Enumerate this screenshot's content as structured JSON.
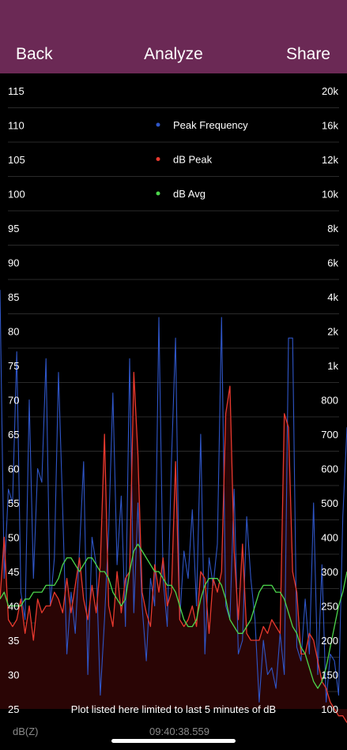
{
  "navbar": {
    "back_label": "Back",
    "title": "Analyze",
    "share_label": "Share"
  },
  "footer": {
    "notice": "Plot listed here limited to last 5 minutes of dB",
    "weighting": "dB(Z)",
    "timestamp": "09:40:38.559"
  },
  "colors": {
    "navbar": "#6b2955",
    "background": "#000000",
    "peak_frequency": "#2f56c8",
    "db_peak": "#e8392e",
    "db_avg": "#4cd64c",
    "fill": "#2a0505"
  },
  "chart_data": {
    "type": "line",
    "title": "",
    "xlabel": "",
    "grid": true,
    "legend_placement": "top-center",
    "left_axis": {
      "label": "",
      "ylim": [
        25,
        115
      ],
      "ticks": [
        "115",
        "110",
        "105",
        "100",
        "95",
        "90",
        "85",
        "80",
        "75",
        "70",
        "65",
        "60",
        "55",
        "50",
        "45",
        "40",
        "35",
        "30",
        "25"
      ]
    },
    "right_axis": {
      "label": "",
      "ticks": [
        "20k",
        "16k",
        "12k",
        "10k",
        "8k",
        "6k",
        "4k",
        "2k",
        "1k",
        "800",
        "700",
        "600",
        "500",
        "400",
        "300",
        "250",
        "200",
        "150",
        "100"
      ]
    },
    "series": [
      {
        "name": "Peak Frequency",
        "axis": "right",
        "color": "#2f56c8",
        "values": [
          86,
          44,
          57,
          55,
          77,
          42,
          38,
          70,
          44,
          60,
          58,
          76,
          40,
          47,
          74,
          54,
          33,
          42,
          36,
          48,
          61,
          30,
          50,
          46,
          27,
          38,
          51,
          71,
          46,
          56,
          37,
          76,
          39,
          55,
          40,
          32,
          44,
          40,
          82,
          44,
          37,
          61,
          79,
          38,
          48,
          44,
          54,
          40,
          65,
          33,
          47,
          43,
          49,
          82,
          40,
          38,
          57,
          33,
          35,
          53,
          44,
          38,
          26,
          35,
          30,
          31,
          28,
          36,
          30,
          79,
          79,
          34,
          32,
          41,
          33,
          55,
          30,
          46,
          26,
          33,
          32,
          27,
          53,
          66
        ]
      },
      {
        "name": "dB Peak",
        "axis": "left",
        "color": "#e8392e",
        "values": [
          41,
          50,
          38,
          37,
          38,
          41,
          36,
          40,
          35,
          41,
          39,
          40,
          40,
          42,
          41,
          39,
          44,
          39,
          43,
          47,
          41,
          38,
          43,
          39,
          46,
          65,
          40,
          37,
          45,
          39,
          44,
          45,
          74,
          62,
          42,
          39,
          37,
          46,
          42,
          47,
          40,
          42,
          61,
          38,
          37,
          38,
          40,
          37,
          45,
          44,
          36,
          44,
          42,
          45,
          68,
          72,
          48,
          38,
          49,
          36,
          35,
          35,
          35,
          37,
          36,
          38,
          37,
          36,
          68,
          66,
          45,
          42,
          33,
          33,
          36,
          35,
          32,
          29,
          28,
          26,
          25,
          24,
          24,
          23
        ]
      },
      {
        "name": "dB Avg",
        "axis": "left",
        "color": "#4cd64c",
        "values": [
          41,
          42,
          40,
          40,
          40,
          40,
          41,
          41,
          42,
          42,
          42,
          43,
          43,
          43,
          44,
          46,
          47,
          47,
          46,
          45,
          46,
          47,
          47,
          46,
          45,
          45,
          44,
          42,
          41,
          40,
          41,
          45,
          48,
          49,
          48,
          47,
          46,
          45,
          45,
          44,
          43,
          43,
          42,
          40,
          38,
          37,
          37,
          38,
          41,
          43,
          44,
          44,
          44,
          43,
          41,
          38,
          37,
          36,
          36,
          37,
          38,
          40,
          42,
          43,
          43,
          43,
          42,
          42,
          41,
          39,
          37,
          36,
          34,
          33,
          31,
          29,
          28,
          29,
          31,
          34,
          37,
          40,
          42,
          45
        ]
      }
    ]
  }
}
